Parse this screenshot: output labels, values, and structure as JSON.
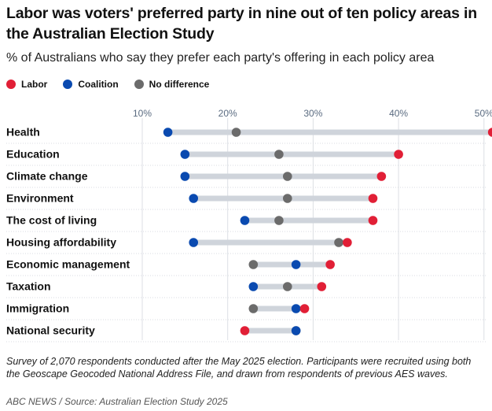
{
  "header": {
    "title": "Labor was voters' preferred party in nine out of ten policy areas in the Australian Election Study",
    "subtitle": "% of Australians who say they prefer each party's offering in each policy area"
  },
  "legend": [
    {
      "label": "Labor",
      "color": "#e11f36"
    },
    {
      "label": "Coalition",
      "color": "#0a4ab0"
    },
    {
      "label": "No difference",
      "color": "#6b6b6b"
    }
  ],
  "chart_data": {
    "type": "dot-range",
    "title": "Labor was voters' preferred party in nine out of ten policy areas in the Australian Election Study",
    "subtitle": "% of Australians who say they prefer each party's offering in each policy area",
    "xlabel": "",
    "ylabel": "",
    "xlim": [
      10,
      51
    ],
    "xticks": [
      10,
      20,
      30,
      40,
      50
    ],
    "tick_labels": [
      "10%",
      "20%",
      "30%",
      "40%",
      "50%"
    ],
    "grid": true,
    "legend_position": "top-left",
    "categories": [
      "Health",
      "Education",
      "Climate change",
      "Environment",
      "The cost of living",
      "Housing affordability",
      "Economic management",
      "Taxation",
      "Immigration",
      "National security"
    ],
    "series": [
      {
        "name": "Labor",
        "color": "#e11f36",
        "values": [
          51,
          40,
          38,
          37,
          37,
          34,
          32,
          31,
          29,
          22
        ]
      },
      {
        "name": "Coalition",
        "color": "#0a4ab0",
        "values": [
          13,
          15,
          15,
          16,
          22,
          16,
          28,
          23,
          28,
          28
        ]
      },
      {
        "name": "No difference",
        "color": "#6b6b6b",
        "values": [
          21,
          26,
          27,
          27,
          26,
          33,
          23,
          27,
          23,
          28
        ]
      }
    ]
  },
  "notes": {
    "footnote": "Survey of 2,070 respondents conducted after the May 2025 election. Participants were recruited using both the Geoscape Geocoded National Address File, and drawn from respondents of previous AES waves.",
    "source": "ABC NEWS / Source: Australian Election Study 2025"
  }
}
